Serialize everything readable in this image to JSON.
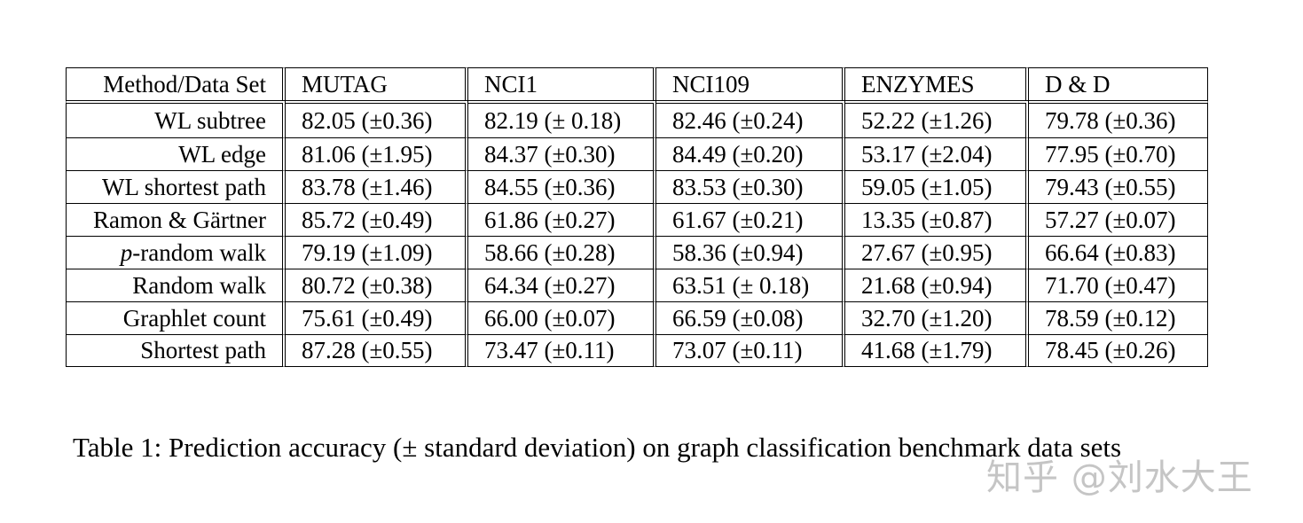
{
  "table": {
    "columns": [
      "Method/Data Set",
      "MUTAG",
      "NCI1",
      "NCI109",
      "ENZYMES",
      "D & D"
    ],
    "rows": [
      {
        "method_prefix": "",
        "method_rest": "WL subtree",
        "values": [
          "82.05 (±0.36)",
          "82.19 (± 0.18)",
          "82.46 (±0.24)",
          "52.22 (±1.26)",
          "79.78 (±0.36)"
        ]
      },
      {
        "method_prefix": "",
        "method_rest": "WL edge",
        "values": [
          "81.06 (±1.95)",
          "84.37 (±0.30)",
          "84.49 (±0.20)",
          "53.17 (±2.04)",
          "77.95 (±0.70)"
        ]
      },
      {
        "method_prefix": "",
        "method_rest": "WL shortest path",
        "values": [
          "83.78 (±1.46)",
          "84.55 (±0.36)",
          "83.53 (±0.30)",
          "59.05 (±1.05)",
          "79.43 (±0.55)"
        ]
      },
      {
        "method_prefix": "",
        "method_rest": "Ramon & Gärtner",
        "values": [
          "85.72 (±0.49)",
          "61.86 (±0.27)",
          "61.67 (±0.21)",
          "13.35 (±0.87)",
          "57.27 (±0.07)"
        ]
      },
      {
        "method_prefix": "p",
        "method_rest": "-random walk",
        "values": [
          "79.19 (±1.09)",
          "58.66 (±0.28)",
          "58.36 (±0.94)",
          "27.67 (±0.95)",
          "66.64 (±0.83)"
        ]
      },
      {
        "method_prefix": "",
        "method_rest": "Random walk",
        "values": [
          "80.72 (±0.38)",
          "64.34 (±0.27)",
          "63.51 (± 0.18)",
          "21.68 (±0.94)",
          "71.70 (±0.47)"
        ]
      },
      {
        "method_prefix": "",
        "method_rest": "Graphlet count",
        "values": [
          "75.61 (±0.49)",
          "66.00 (±0.07)",
          "66.59 (±0.08)",
          "32.70 (±1.20)",
          "78.59 (±0.12)"
        ]
      },
      {
        "method_prefix": "",
        "method_rest": "Shortest path",
        "values": [
          "87.28 (±0.55)",
          "73.47 (±0.11)",
          "73.07 (±0.11)",
          "41.68 (±1.79)",
          "78.45 (±0.26)"
        ]
      }
    ]
  },
  "caption": "Table 1: Prediction accuracy (± standard deviation) on graph classification benchmark data sets",
  "watermark": "知乎 @刘水大王"
}
